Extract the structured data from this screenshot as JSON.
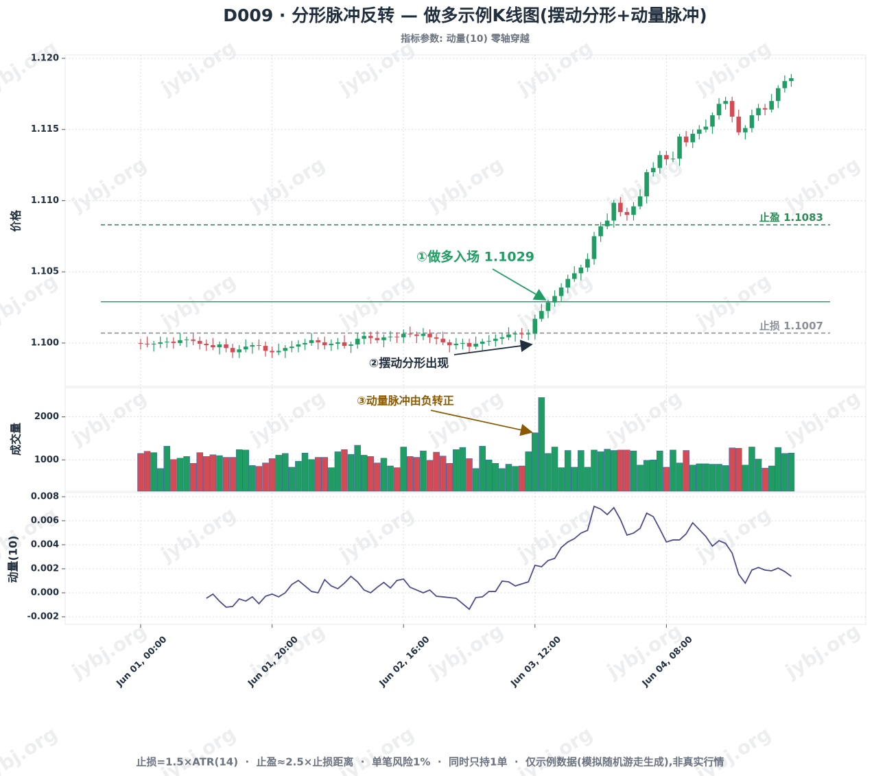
{
  "watermark": "jybj.org",
  "footer": "止损=1.5×ATR(14)  ·  止盈≈2.5×止损距离  ·  单笔风险1%  ·  同时只持1单  ·  仅示例数据(模拟随机游走生成),非真实行情",
  "chart_data": [
    {
      "type": "candlestick",
      "title": "D009 · 分形脉冲反转 — 做多示例K线图(摆动分形+动量脉冲)",
      "subtitle": "指标参数: 动量(10) 零轴穿越",
      "y_label": "价格",
      "ylim": [
        1.09696,
        1.12024
      ],
      "yticks": [
        {
          "value": 1.1,
          "label": "1.100"
        },
        1.105,
        {
          "value": 1.11,
          "label": "1.110"
        },
        1.115,
        {
          "value": 1.12,
          "label": "1.120"
        }
      ],
      "grid": true,
      "up_color": "#1f9d63",
      "down_color": "#d24b55",
      "open": [
        1.1,
        1.09995,
        1.0999,
        1.09995,
        1.10005,
        1.1001,
        1.1,
        1.1002,
        1.10025,
        1.10015,
        1.09995,
        1.09985,
        1.0997,
        1.0999,
        1.09965,
        1.09935,
        1.09955,
        1.09975,
        1.09985,
        1.0998,
        1.09945,
        1.09935,
        1.09945,
        1.09965,
        1.09975,
        1.0999,
        1.1,
        1.1002,
        1.10005,
        1.09985,
        1.09995,
        1.10005,
        1.0998,
        1.0999,
        1.1003,
        1.1005,
        1.10035,
        1.1002,
        1.1004,
        1.10045,
        1.1004,
        1.10065,
        1.1006,
        1.1005,
        1.10065,
        1.1004,
        1.1003,
        1.10005,
        1.09985,
        1.09995,
        1.1,
        1.09975,
        1.09995,
        1.1001,
        1.10015,
        1.1003,
        1.1004,
        1.1006,
        1.10065,
        1.1006,
        1.10065,
        1.1017,
        1.10225,
        1.10285,
        1.1033,
        1.1039,
        1.1045,
        1.1049,
        1.1053,
        1.1059,
        1.1075,
        1.1082,
        1.1086,
        1.10985,
        1.1092,
        1.109,
        1.1096,
        1.1103,
        1.112,
        1.1123,
        1.1132,
        1.1129,
        1.11295,
        1.1145,
        1.1141,
        1.1147,
        1.115,
        1.1152,
        1.116,
        1.1168,
        1.117,
        1.1159,
        1.1148,
        1.1151,
        1.116,
        1.1165,
        1.1164,
        1.117,
        1.1179,
        1.1184
      ],
      "high": [
        1.1003,
        1.10045,
        1.10015,
        1.10045,
        1.1004,
        1.1004,
        1.1007,
        1.10045,
        1.10065,
        1.10045,
        1.10025,
        1.10035,
        1.1001,
        1.1003,
        1.09995,
        1.09985,
        1.10025,
        1.10005,
        1.10025,
        1.1001,
        1.09975,
        1.09995,
        1.09985,
        1.10015,
        1.1002,
        1.1003,
        1.1007,
        1.1004,
        1.10045,
        1.10025,
        1.10035,
        1.10055,
        1.1001,
        1.1007,
        1.1008,
        1.1008,
        1.10085,
        1.1006,
        1.10085,
        1.10075,
        1.10095,
        1.10115,
        1.1008,
        1.10105,
        1.10095,
        1.1007,
        1.1008,
        1.10025,
        1.10035,
        1.1003,
        1.1003,
        1.10045,
        1.1003,
        1.10055,
        1.1006,
        1.1007,
        1.1011,
        1.10085,
        1.10105,
        1.10095,
        1.102,
        1.10275,
        1.10305,
        1.1037,
        1.1042,
        1.1048,
        1.1054,
        1.1055,
        1.1063,
        1.1078,
        1.1085,
        1.1091,
        1.11005,
        1.11025,
        1.1095,
        1.1099,
        1.1108,
        1.1122,
        1.1127,
        1.1135,
        1.1135,
        1.11345,
        1.1147,
        1.1149,
        1.115,
        1.1153,
        1.1157,
        1.1162,
        1.1172,
        1.1173,
        1.1173,
        1.1164,
        1.1153,
        1.1164,
        1.1168,
        1.1168,
        1.1175,
        1.1181,
        1.1188,
        1.1189
      ],
      "low": [
        1.09955,
        1.0997,
        1.0994,
        1.09965,
        1.09965,
        1.0996,
        1.0998,
        1.0997,
        1.09985,
        1.09955,
        1.09945,
        1.0995,
        1.0992,
        1.09935,
        1.09895,
        1.09895,
        1.09935,
        1.09925,
        1.0995,
        1.09905,
        1.09895,
        1.09915,
        1.09895,
        1.09935,
        1.09935,
        1.0995,
        1.0998,
        1.09955,
        1.09955,
        1.09945,
        1.09955,
        1.0996,
        1.0993,
        1.0996,
        1.0999,
        1.09995,
        1.1,
        1.0997,
        1.1001,
        1.1,
        1.1,
        1.1004,
        1.1,
        1.1002,
        1.1,
        1.0999,
        1.09985,
        1.09935,
        1.09955,
        1.09955,
        1.09935,
        1.09955,
        1.09945,
        1.0998,
        1.09975,
        1.0999,
        1.1002,
        1.1001,
        1.1003,
        1.1002,
        1.10025,
        1.1015,
        1.10175,
        1.10255,
        1.1029,
        1.1035,
        1.1043,
        1.1044,
        1.105,
        1.1055,
        1.1071,
        1.108,
        1.1081,
        1.1089,
        1.1086,
        1.1086,
        1.1094,
        1.1098,
        1.1117,
        1.1119,
        1.1125,
        1.1127,
        1.11245,
        1.1138,
        1.1137,
        1.1143,
        1.1148,
        1.1147,
        1.1157,
        1.1164,
        1.1155,
        1.1146,
        1.1143,
        1.1148,
        1.1156,
        1.116,
        1.1162,
        1.1165,
        1.1176,
        1.118
      ],
      "close": [
        1.09995,
        1.0999,
        1.09995,
        1.10005,
        1.1001,
        1.1,
        1.1002,
        1.10025,
        1.10015,
        1.09995,
        1.09985,
        1.0997,
        1.0999,
        1.09965,
        1.09935,
        1.09955,
        1.09975,
        1.09985,
        1.0998,
        1.09945,
        1.09935,
        1.09945,
        1.09965,
        1.09975,
        1.0999,
        1.1,
        1.1002,
        1.10005,
        1.09985,
        1.09995,
        1.10005,
        1.0998,
        1.0999,
        1.1003,
        1.1005,
        1.10035,
        1.1002,
        1.1004,
        1.10045,
        1.1004,
        1.10065,
        1.1006,
        1.1005,
        1.10065,
        1.1004,
        1.1003,
        1.10005,
        1.09985,
        1.09995,
        1.1,
        1.09975,
        1.09995,
        1.1001,
        1.10015,
        1.1003,
        1.1004,
        1.1006,
        1.10065,
        1.1006,
        1.10065,
        1.1017,
        1.10225,
        1.10285,
        1.1033,
        1.1039,
        1.1045,
        1.1049,
        1.1053,
        1.1059,
        1.1075,
        1.1082,
        1.1086,
        1.10985,
        1.1092,
        1.109,
        1.1096,
        1.1103,
        1.112,
        1.1123,
        1.1132,
        1.1129,
        1.11295,
        1.1145,
        1.1141,
        1.1147,
        1.115,
        1.1152,
        1.116,
        1.1168,
        1.117,
        1.1159,
        1.1148,
        1.1151,
        1.116,
        1.1165,
        1.1164,
        1.117,
        1.1179,
        1.1184,
        1.1186
      ],
      "levels": [
        {
          "value": 1.1083,
          "label": "止盈 1.1083",
          "color": "#2e8b57",
          "dashed": true
        },
        {
          "value": 1.1029,
          "color": "#27a36a",
          "dashed": false
        },
        {
          "value": 1.1007,
          "label": "止损 1.1007",
          "color": "#8a8f98",
          "dashed": true
        }
      ],
      "annotations": [
        "①做多入场 1.1029",
        "②摆动分形出现"
      ]
    },
    {
      "type": "bar",
      "y_label": "成交量",
      "ylim": [
        270,
        2680
      ],
      "yticks": [
        1000,
        2000
      ],
      "grid": true,
      "values": [
        1150,
        1200,
        1170,
        800,
        1320,
        1010,
        1040,
        1080,
        920,
        1170,
        1080,
        1120,
        1100,
        1060,
        1060,
        1240,
        1230,
        870,
        850,
        930,
        1030,
        1110,
        1150,
        830,
        970,
        1160,
        1010,
        1060,
        1060,
        820,
        1190,
        1240,
        1130,
        1340,
        1110,
        1080,
        930,
        1040,
        860,
        820,
        1300,
        1080,
        1060,
        1210,
        990,
        1180,
        1090,
        920,
        1240,
        1290,
        1030,
        800,
        1320,
        1000,
        920,
        800,
        900,
        850,
        860,
        1190,
        1630,
        2450,
        1150,
        1300,
        820,
        1220,
        830,
        1220,
        830,
        1230,
        1190,
        1250,
        1220,
        1230,
        1230,
        1210,
        880,
        990,
        1000,
        1210,
        830,
        1230,
        930,
        1220,
        880,
        910,
        910,
        900,
        900,
        870,
        1280,
        1270,
        880,
        1300,
        1020,
        810,
        860,
        1290,
        1150,
        1160
      ],
      "annotation": "③动量脉冲由负转正"
    },
    {
      "type": "line",
      "y_label": "动量(10)",
      "ylim": [
        -0.00263,
        0.00834
      ],
      "yticks": [
        -0.002,
        {
          "value": 0,
          "label": "0.000"
        },
        0.002,
        0.004,
        0.006,
        0.008
      ],
      "grid": true,
      "x": [
        "Jun 01, 00:00",
        "Jun 01, 01:00",
        "Jun 01, 02:00",
        "Jun 01, 03:00",
        "Jun 01, 04:00",
        "Jun 01, 05:00",
        "Jun 01, 06:00",
        "Jun 01, 07:00",
        "Jun 01, 08:00",
        "Jun 01, 09:00",
        "Jun 01, 10:00",
        "Jun 01, 11:00",
        "Jun 01, 12:00",
        "Jun 01, 13:00",
        "Jun 01, 14:00",
        "Jun 01, 15:00",
        "Jun 01, 16:00",
        "Jun 01, 17:00",
        "Jun 01, 18:00",
        "Jun 01, 19:00",
        "Jun 01, 20:00",
        "Jun 01, 21:00",
        "Jun 01, 22:00",
        "Jun 01, 23:00",
        "Jun 02, 00:00",
        "Jun 02, 01:00",
        "Jun 02, 02:00",
        "Jun 02, 03:00",
        "Jun 02, 04:00",
        "Jun 02, 05:00",
        "Jun 02, 06:00",
        "Jun 02, 07:00",
        "Jun 02, 08:00",
        "Jun 02, 09:00",
        "Jun 02, 10:00",
        "Jun 02, 11:00",
        "Jun 02, 12:00",
        "Jun 02, 13:00",
        "Jun 02, 14:00",
        "Jun 02, 15:00",
        "Jun 02, 16:00",
        "Jun 02, 17:00",
        "Jun 02, 18:00",
        "Jun 02, 19:00",
        "Jun 02, 20:00",
        "Jun 02, 21:00",
        "Jun 02, 22:00",
        "Jun 02, 23:00",
        "Jun 03, 00:00",
        "Jun 03, 01:00",
        "Jun 03, 02:00",
        "Jun 03, 03:00",
        "Jun 03, 04:00",
        "Jun 03, 05:00",
        "Jun 03, 06:00",
        "Jun 03, 07:00",
        "Jun 03, 08:00",
        "Jun 03, 09:00",
        "Jun 03, 10:00",
        "Jun 03, 11:00",
        "Jun 03, 12:00",
        "Jun 03, 13:00",
        "Jun 03, 14:00",
        "Jun 03, 15:00",
        "Jun 03, 16:00",
        "Jun 03, 17:00",
        "Jun 03, 18:00",
        "Jun 03, 19:00",
        "Jun 03, 20:00",
        "Jun 03, 21:00",
        "Jun 03, 22:00",
        "Jun 03, 23:00",
        "Jun 04, 00:00",
        "Jun 04, 01:00",
        "Jun 04, 02:00",
        "Jun 04, 03:00",
        "Jun 04, 04:00",
        "Jun 04, 05:00",
        "Jun 04, 06:00",
        "Jun 04, 07:00",
        "Jun 04, 08:00",
        "Jun 04, 09:00",
        "Jun 04, 10:00",
        "Jun 04, 11:00",
        "Jun 04, 12:00",
        "Jun 04, 13:00",
        "Jun 04, 14:00",
        "Jun 04, 15:00",
        "Jun 04, 16:00",
        "Jun 04, 17:00",
        "Jun 04, 18:00",
        "Jun 04, 19:00",
        "Jun 04, 20:00",
        "Jun 04, 21:00",
        "Jun 04, 22:00",
        "Jun 04, 23:00",
        "Jun 05, 00:00",
        "Jun 05, 01:00",
        "Jun 05, 02:00",
        "Jun 05, 03:00"
      ],
      "series": [
        {
          "color": "#4b4a8c",
          "values": [
            null,
            null,
            null,
            null,
            null,
            null,
            null,
            null,
            null,
            null,
            -0.00046,
            -0.00011,
            -0.0007,
            -0.0012,
            -0.00114,
            -0.00051,
            -0.00069,
            -0.00034,
            -0.00091,
            -0.00029,
            -0.00011,
            -0.00034,
            0,
            0.00069,
            0.00103,
            0.00057,
            0.00011,
            0,
            0.00109,
            0.00057,
            0.00034,
            0.0008,
            0.00137,
            0.00091,
            0.00023,
            0,
            0.00046,
            0.00086,
            0.0004,
            0.00103,
            0.00114,
            0.00046,
            0.00023,
            0,
            0.00023,
            -0.00029,
            -0.00034,
            -0.0004,
            -0.00046,
            -0.00091,
            -0.00137,
            -0.0004,
            -0.00034,
            0.00011,
            0.00011,
            0.00097,
            0.00091,
            0.00057,
            0.00074,
            0.00091,
            0.00229,
            0.00217,
            0.00269,
            0.00286,
            0.00377,
            0.00423,
            0.00451,
            0.00497,
            0.0052,
            0.0072,
            0.00697,
            0.00651,
            0.00709,
            0.00611,
            0.0048,
            0.00497,
            0.00537,
            0.00663,
            0.00634,
            0.00531,
            0.00423,
            0.0044,
            0.0044,
            0.00491,
            0.00583,
            0.00526,
            0.00469,
            0.00389,
            0.00434,
            0.00411,
            0.00331,
            0.00154,
            0.0008,
            0.00189,
            0.00211,
            0.00189,
            0.00183,
            0.00206,
            0.00177,
            0.00137
          ]
        }
      ]
    }
  ]
}
